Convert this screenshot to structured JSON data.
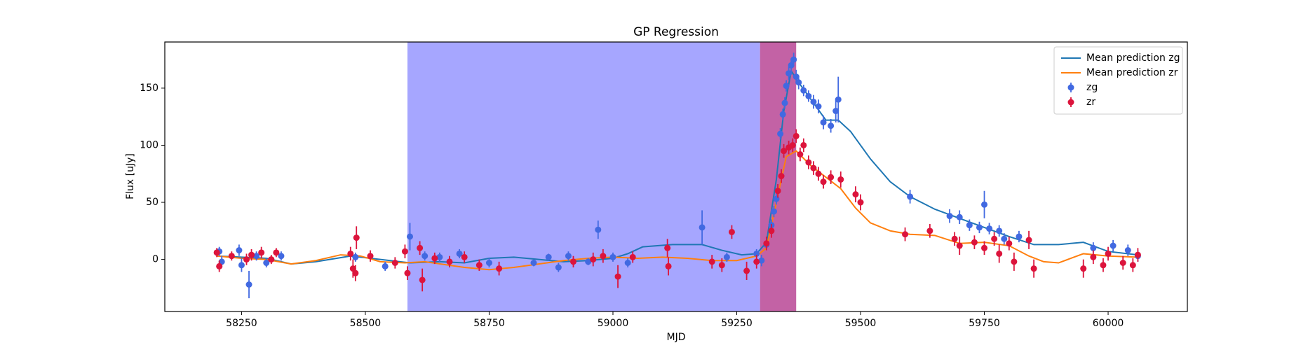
{
  "chart_data": {
    "type": "scatter",
    "title": "GP Regression",
    "x_label": "MJD",
    "y_label": "Flux [uJy]",
    "xlim": [
      58095,
      60160
    ],
    "ylim": [
      -45.6,
      190.4
    ],
    "xticks": [
      58250,
      58500,
      58750,
      59000,
      59250,
      59500,
      59750,
      60000
    ],
    "yticks": [
      0,
      50,
      100,
      150
    ],
    "legend": "upper right",
    "spans": [
      {
        "start": 58585,
        "end": 59297,
        "color": "#a6a6ff"
      },
      {
        "start": 59297,
        "end": 59370,
        "color": "#c362a5"
      }
    ],
    "series": [
      {
        "name": "Mean prediction zg",
        "kind": "line",
        "color": "#1f77b4",
        "x": [
          58200,
          58250,
          58300,
          58350,
          58400,
          58470,
          58530,
          58590,
          58650,
          58700,
          58750,
          58800,
          58850,
          58900,
          58950,
          59000,
          59030,
          59060,
          59120,
          59180,
          59220,
          59260,
          59290,
          59310,
          59330,
          59345,
          59360,
          59375,
          59400,
          59430,
          59455,
          59480,
          59520,
          59560,
          59600,
          59650,
          59700,
          59750,
          59800,
          59850,
          59900,
          59950,
          60000,
          60060
        ],
        "values": [
          3,
          2,
          1,
          -4,
          -2,
          3,
          0,
          -3,
          -2,
          -3,
          1,
          2,
          0,
          -2,
          -1,
          1,
          5,
          11,
          13,
          13,
          8,
          4,
          5,
          15,
          70,
          130,
          165,
          155,
          140,
          122,
          122,
          112,
          88,
          68,
          55,
          44,
          36,
          28,
          20,
          13,
          13,
          15,
          7,
          4
        ]
      },
      {
        "name": "Mean prediction zr",
        "kind": "line",
        "color": "#ff7f0e",
        "x": [
          58200,
          58250,
          58300,
          58350,
          58400,
          58450,
          58490,
          58530,
          58580,
          58620,
          58700,
          58750,
          58800,
          58850,
          58900,
          58950,
          59000,
          59050,
          59100,
          59150,
          59200,
          59250,
          59290,
          59310,
          59330,
          59350,
          59370,
          59400,
          59430,
          59460,
          59490,
          59520,
          59560,
          59600,
          59650,
          59700,
          59750,
          59800,
          59840,
          59870,
          59900,
          59950,
          60000,
          60060
        ],
        "values": [
          3,
          1,
          0,
          -4,
          -1,
          4,
          3,
          -2,
          -3,
          -2,
          -7,
          -9,
          -7,
          -4,
          -1,
          1,
          2,
          1,
          2,
          1,
          -1,
          -1,
          3,
          10,
          50,
          90,
          95,
          82,
          72,
          62,
          45,
          32,
          25,
          22,
          21,
          14,
          15,
          12,
          3,
          -2,
          -3,
          5,
          3,
          2
        ]
      },
      {
        "name": "zg",
        "kind": "errorbar",
        "color": "#4169e1",
        "x": [
          58205,
          58210,
          58245,
          58250,
          58265,
          58280,
          58300,
          58330,
          58480,
          58540,
          58590,
          58620,
          58650,
          58690,
          58750,
          58840,
          58870,
          58890,
          58910,
          58950,
          58970,
          59000,
          59030,
          59180,
          59230,
          59290,
          59300,
          59310,
          59320,
          59325,
          59330,
          59338,
          59343,
          59347,
          59350,
          59355,
          59360,
          59365,
          59370,
          59375,
          59385,
          59395,
          59405,
          59415,
          59425,
          59440,
          59450,
          59455,
          59600,
          59680,
          59700,
          59720,
          59740,
          59750,
          59760,
          59780,
          59790,
          59820,
          59970,
          60010,
          60040,
          60060
        ],
        "values": [
          7,
          -2,
          8,
          -5,
          -22,
          3,
          -3,
          3,
          2,
          -6,
          20,
          3,
          2,
          5,
          -3,
          -3,
          2,
          -7,
          3,
          -2,
          26,
          2,
          -3,
          28,
          2,
          5,
          -1,
          13,
          30,
          42,
          53,
          110,
          127,
          137,
          152,
          163,
          170,
          175,
          160,
          155,
          148,
          143,
          138,
          134,
          120,
          117,
          130,
          140,
          55,
          38,
          37,
          30,
          28,
          48,
          27,
          25,
          18,
          20,
          10,
          12,
          8,
          3
        ],
        "errors": [
          4,
          5,
          5,
          6,
          12,
          4,
          4,
          4,
          4,
          4,
          12,
          4,
          4,
          4,
          4,
          3,
          3,
          4,
          4,
          3,
          8,
          4,
          4,
          15,
          4,
          4,
          5,
          4,
          5,
          5,
          5,
          5,
          5,
          5,
          5,
          6,
          6,
          6,
          6,
          6,
          5,
          5,
          6,
          6,
          6,
          6,
          10,
          20,
          6,
          6,
          6,
          5,
          5,
          12,
          5,
          5,
          5,
          5,
          5,
          5,
          5,
          5
        ]
      },
      {
        "name": "zr",
        "kind": "errorbar",
        "color": "#dc143c",
        "x": [
          58200,
          58205,
          58230,
          58260,
          58270,
          58290,
          58310,
          58320,
          58470,
          58475,
          58480,
          58482,
          58510,
          58560,
          58580,
          58585,
          58610,
          58615,
          58640,
          58670,
          58700,
          58730,
          58770,
          58920,
          58960,
          58980,
          59010,
          59040,
          59110,
          59112,
          59200,
          59220,
          59240,
          59270,
          59290,
          59310,
          59320,
          59333,
          59340,
          59345,
          59355,
          59363,
          59370,
          59378,
          59385,
          59395,
          59405,
          59415,
          59425,
          59440,
          59460,
          59490,
          59500,
          59590,
          59640,
          59690,
          59700,
          59730,
          59750,
          59770,
          59780,
          59800,
          59810,
          59840,
          59850,
          59950,
          59970,
          59990,
          60000,
          60030,
          60050,
          60060
        ],
        "values": [
          6,
          -6,
          3,
          0,
          4,
          6,
          0,
          6,
          5,
          -8,
          -12,
          19,
          3,
          -3,
          7,
          -12,
          10,
          -18,
          1,
          -2,
          2,
          -5,
          -8,
          -2,
          0,
          3,
          -15,
          2,
          10,
          -6,
          -2,
          -5,
          24,
          -10,
          -2,
          14,
          25,
          60,
          73,
          95,
          98,
          100,
          108,
          92,
          100,
          85,
          80,
          75,
          68,
          72,
          70,
          57,
          50,
          22,
          25,
          18,
          12,
          15,
          10,
          18,
          5,
          14,
          -2,
          17,
          -8,
          -8,
          2,
          -5,
          5,
          -3,
          -5,
          4
        ],
        "errors": [
          4,
          5,
          4,
          5,
          5,
          5,
          4,
          4,
          6,
          8,
          7,
          10,
          5,
          5,
          6,
          6,
          6,
          10,
          5,
          5,
          5,
          5,
          6,
          5,
          6,
          6,
          10,
          5,
          8,
          8,
          6,
          6,
          6,
          8,
          6,
          6,
          6,
          6,
          6,
          6,
          6,
          6,
          6,
          6,
          6,
          6,
          6,
          6,
          6,
          6,
          7,
          7,
          7,
          6,
          6,
          6,
          8,
          6,
          6,
          6,
          8,
          6,
          8,
          8,
          8,
          8,
          6,
          6,
          6,
          6,
          6,
          6
        ]
      }
    ]
  }
}
